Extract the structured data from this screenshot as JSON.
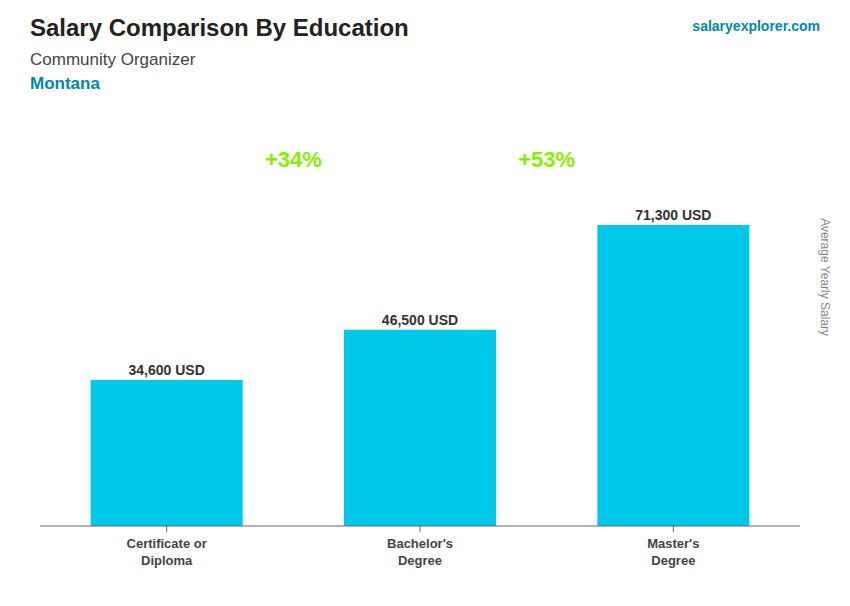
{
  "chart_data": {
    "type": "bar",
    "title": "Salary Comparison By Education",
    "subtitle": "Community Organizer",
    "ylabel": "Average Yearly Salary",
    "categories": [
      "Certificate or\nDiploma",
      "Bachelor's\nDegree",
      "Master's\nDegree"
    ],
    "values": [
      34600,
      46500,
      71300
    ],
    "value_labels": [
      "34,600 USD",
      "46,500 USD",
      "71,300 USD"
    ],
    "data_labels": true,
    "color": "#00c8e8",
    "ylim": [
      0,
      90000
    ],
    "tick_labels": "x",
    "grid": false,
    "annotations": [
      {
        "text": "Montana"
      },
      {
        "text": "salaryexplorer.com"
      },
      {
        "text": "+34%",
        "between": [
          0,
          1
        ],
        "color": "#88ee00"
      },
      {
        "text": "+53%",
        "between": [
          1,
          2
        ],
        "color": "#88ee00"
      }
    ]
  }
}
